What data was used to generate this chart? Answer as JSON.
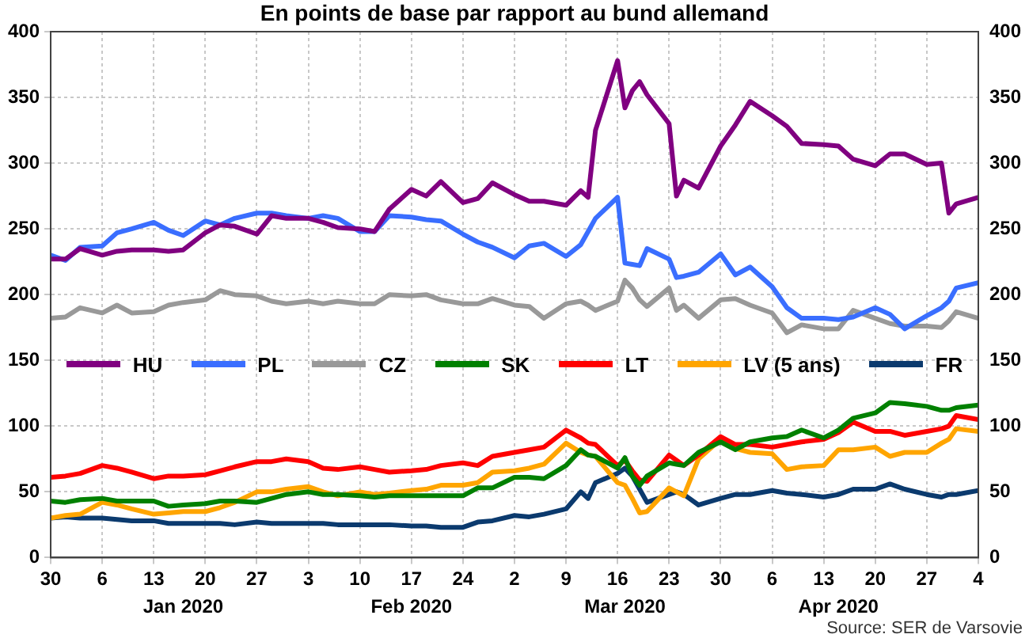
{
  "chart_data": {
    "type": "line",
    "title": "En points de base par rapport au bund allemand",
    "x": [
      "2019-12-30",
      "2020-01-01",
      "2020-01-03",
      "2020-01-06",
      "2020-01-08",
      "2020-01-10",
      "2020-01-13",
      "2020-01-15",
      "2020-01-17",
      "2020-01-20",
      "2020-01-22",
      "2020-01-24",
      "2020-01-27",
      "2020-01-29",
      "2020-01-31",
      "2020-02-03",
      "2020-02-05",
      "2020-02-07",
      "2020-02-10",
      "2020-02-12",
      "2020-02-14",
      "2020-02-17",
      "2020-02-19",
      "2020-02-21",
      "2020-02-24",
      "2020-02-26",
      "2020-02-28",
      "2020-03-02",
      "2020-03-04",
      "2020-03-06",
      "2020-03-09",
      "2020-03-11",
      "2020-03-12",
      "2020-03-13",
      "2020-03-16",
      "2020-03-17",
      "2020-03-18",
      "2020-03-19",
      "2020-03-20",
      "2020-03-23",
      "2020-03-24",
      "2020-03-25",
      "2020-03-27",
      "2020-03-30",
      "2020-04-01",
      "2020-04-03",
      "2020-04-06",
      "2020-04-08",
      "2020-04-10",
      "2020-04-13",
      "2020-04-15",
      "2020-04-17",
      "2020-04-20",
      "2020-04-22",
      "2020-04-24",
      "2020-04-27",
      "2020-04-29",
      "2020-04-30",
      "2020-05-01",
      "2020-05-04"
    ],
    "series": [
      {
        "name": "HU",
        "color": "#800080",
        "values": [
          227,
          227,
          235,
          230,
          233,
          234,
          234,
          233,
          234,
          247,
          253,
          252,
          246,
          260,
          258,
          258,
          255,
          251,
          250,
          248,
          265,
          280,
          275,
          286,
          270,
          273,
          285,
          276,
          271,
          271,
          268,
          279,
          274,
          325,
          378,
          342,
          355,
          362,
          352,
          330,
          275,
          287,
          281,
          313,
          329,
          347,
          336,
          328,
          315,
          314,
          313,
          303,
          298,
          307,
          307,
          299,
          300,
          262,
          269,
          274
        ]
      },
      {
        "name": "PL",
        "color": "#3a6eff",
        "values": [
          230,
          226,
          236,
          237,
          247,
          250,
          255,
          249,
          245,
          256,
          253,
          258,
          262,
          262,
          260,
          258,
          260,
          258,
          248,
          248,
          260,
          259,
          257,
          256,
          246,
          240,
          236,
          228,
          237,
          239,
          229,
          238,
          248,
          258,
          274,
          224,
          223,
          222,
          235,
          227,
          213,
          214,
          217,
          231,
          215,
          221,
          206,
          190,
          182,
          182,
          181,
          183,
          190,
          185,
          174,
          184,
          190,
          195,
          205,
          209
        ]
      },
      {
        "name": "CZ",
        "color": "#999999",
        "values": [
          182,
          183,
          190,
          186,
          192,
          186,
          187,
          192,
          194,
          196,
          203,
          200,
          199,
          195,
          193,
          195,
          193,
          195,
          193,
          193,
          200,
          199,
          200,
          196,
          193,
          193,
          197,
          192,
          191,
          182,
          193,
          195,
          192,
          188,
          195,
          211,
          205,
          196,
          191,
          205,
          188,
          192,
          182,
          196,
          197,
          192,
          186,
          171,
          177,
          174,
          174,
          188,
          182,
          178,
          176,
          176,
          175,
          180,
          187,
          182
        ]
      },
      {
        "name": "SK",
        "color": "#008000",
        "values": [
          43,
          42,
          44,
          45,
          43,
          43,
          43,
          39,
          40,
          41,
          43,
          43,
          42,
          45,
          48,
          50,
          48,
          48,
          47,
          46,
          47,
          47,
          47,
          47,
          47,
          53,
          53,
          61,
          61,
          60,
          70,
          82,
          78,
          77,
          68,
          76,
          62,
          55,
          62,
          72,
          71,
          70,
          80,
          88,
          82,
          88,
          91,
          92,
          97,
          91,
          97,
          106,
          110,
          118,
          117,
          115,
          112,
          112,
          114,
          116
        ]
      },
      {
        "name": "LT",
        "color": "#ff0000",
        "values": [
          61,
          62,
          64,
          70,
          68,
          65,
          60,
          62,
          62,
          63,
          66,
          69,
          73,
          73,
          75,
          73,
          68,
          67,
          69,
          67,
          65,
          66,
          67,
          70,
          72,
          70,
          77,
          80,
          82,
          84,
          97,
          91,
          87,
          86,
          70,
          74,
          66,
          59,
          58,
          78,
          74,
          70,
          78,
          92,
          86,
          86,
          84,
          86,
          88,
          90,
          95,
          103,
          96,
          96,
          93,
          96,
          98,
          100,
          108,
          105
        ]
      },
      {
        "name": "LV (5 ans)",
        "color": "#ffa500",
        "values": [
          30,
          32,
          33,
          42,
          40,
          37,
          33,
          34,
          35,
          35,
          38,
          42,
          50,
          50,
          52,
          54,
          50,
          47,
          50,
          48,
          49,
          51,
          52,
          55,
          55,
          57,
          65,
          66,
          68,
          71,
          87,
          80,
          78,
          77,
          57,
          55,
          45,
          34,
          35,
          53,
          50,
          47,
          75,
          90,
          83,
          80,
          79,
          67,
          69,
          70,
          82,
          82,
          84,
          77,
          80,
          80,
          87,
          90,
          98,
          96
        ]
      },
      {
        "name": "FR",
        "color": "#0b3a6e",
        "values": [
          30,
          31,
          30,
          30,
          29,
          28,
          28,
          26,
          26,
          26,
          26,
          25,
          27,
          26,
          26,
          26,
          26,
          25,
          25,
          25,
          25,
          24,
          24,
          23,
          23,
          27,
          28,
          32,
          31,
          33,
          37,
          50,
          45,
          57,
          64,
          68,
          62,
          52,
          42,
          48,
          50,
          48,
          40,
          45,
          48,
          48,
          51,
          49,
          48,
          46,
          48,
          52,
          52,
          56,
          52,
          48,
          46,
          48,
          48,
          51
        ]
      }
    ],
    "xlim": [
      "2019-12-30",
      "2020-05-04"
    ],
    "xticks": [
      {
        "value": "2019-12-30",
        "label": "30"
      },
      {
        "value": "2020-01-06",
        "label": "6"
      },
      {
        "value": "2020-01-13",
        "label": "13"
      },
      {
        "value": "2020-01-20",
        "label": "20"
      },
      {
        "value": "2020-01-27",
        "label": "27"
      },
      {
        "value": "2020-02-03",
        "label": "3"
      },
      {
        "value": "2020-02-10",
        "label": "10"
      },
      {
        "value": "2020-02-17",
        "label": "17"
      },
      {
        "value": "2020-02-24",
        "label": "24"
      },
      {
        "value": "2020-03-02",
        "label": "2"
      },
      {
        "value": "2020-03-09",
        "label": "9"
      },
      {
        "value": "2020-03-16",
        "label": "16"
      },
      {
        "value": "2020-03-23",
        "label": "23"
      },
      {
        "value": "2020-03-30",
        "label": "30"
      },
      {
        "value": "2020-04-06",
        "label": "6"
      },
      {
        "value": "2020-04-13",
        "label": "13"
      },
      {
        "value": "2020-04-20",
        "label": "20"
      },
      {
        "value": "2020-04-27",
        "label": "27"
      },
      {
        "value": "2020-05-04",
        "label": "4"
      }
    ],
    "x2lim": [
      "2019-12-30",
      "2020-05-04"
    ],
    "x2ticks": [
      {
        "value": "2020-01-17",
        "label": "Jan 2020"
      },
      {
        "value": "2020-02-17",
        "label": "Feb 2020"
      },
      {
        "value": "2020-03-17",
        "label": "Mar 2020"
      },
      {
        "value": "2020-04-15",
        "label": "Apr 2020"
      }
    ],
    "ylim": [
      0,
      400
    ],
    "yticks": [
      0,
      50,
      100,
      150,
      200,
      250,
      300,
      350,
      400
    ],
    "y2lim": [
      0,
      400
    ],
    "y2ticks": [
      0,
      50,
      100,
      150,
      200,
      250,
      300,
      350,
      400
    ],
    "grid": true,
    "legend": "center",
    "annotations": [
      "Source: SER de Varsovie"
    ]
  }
}
